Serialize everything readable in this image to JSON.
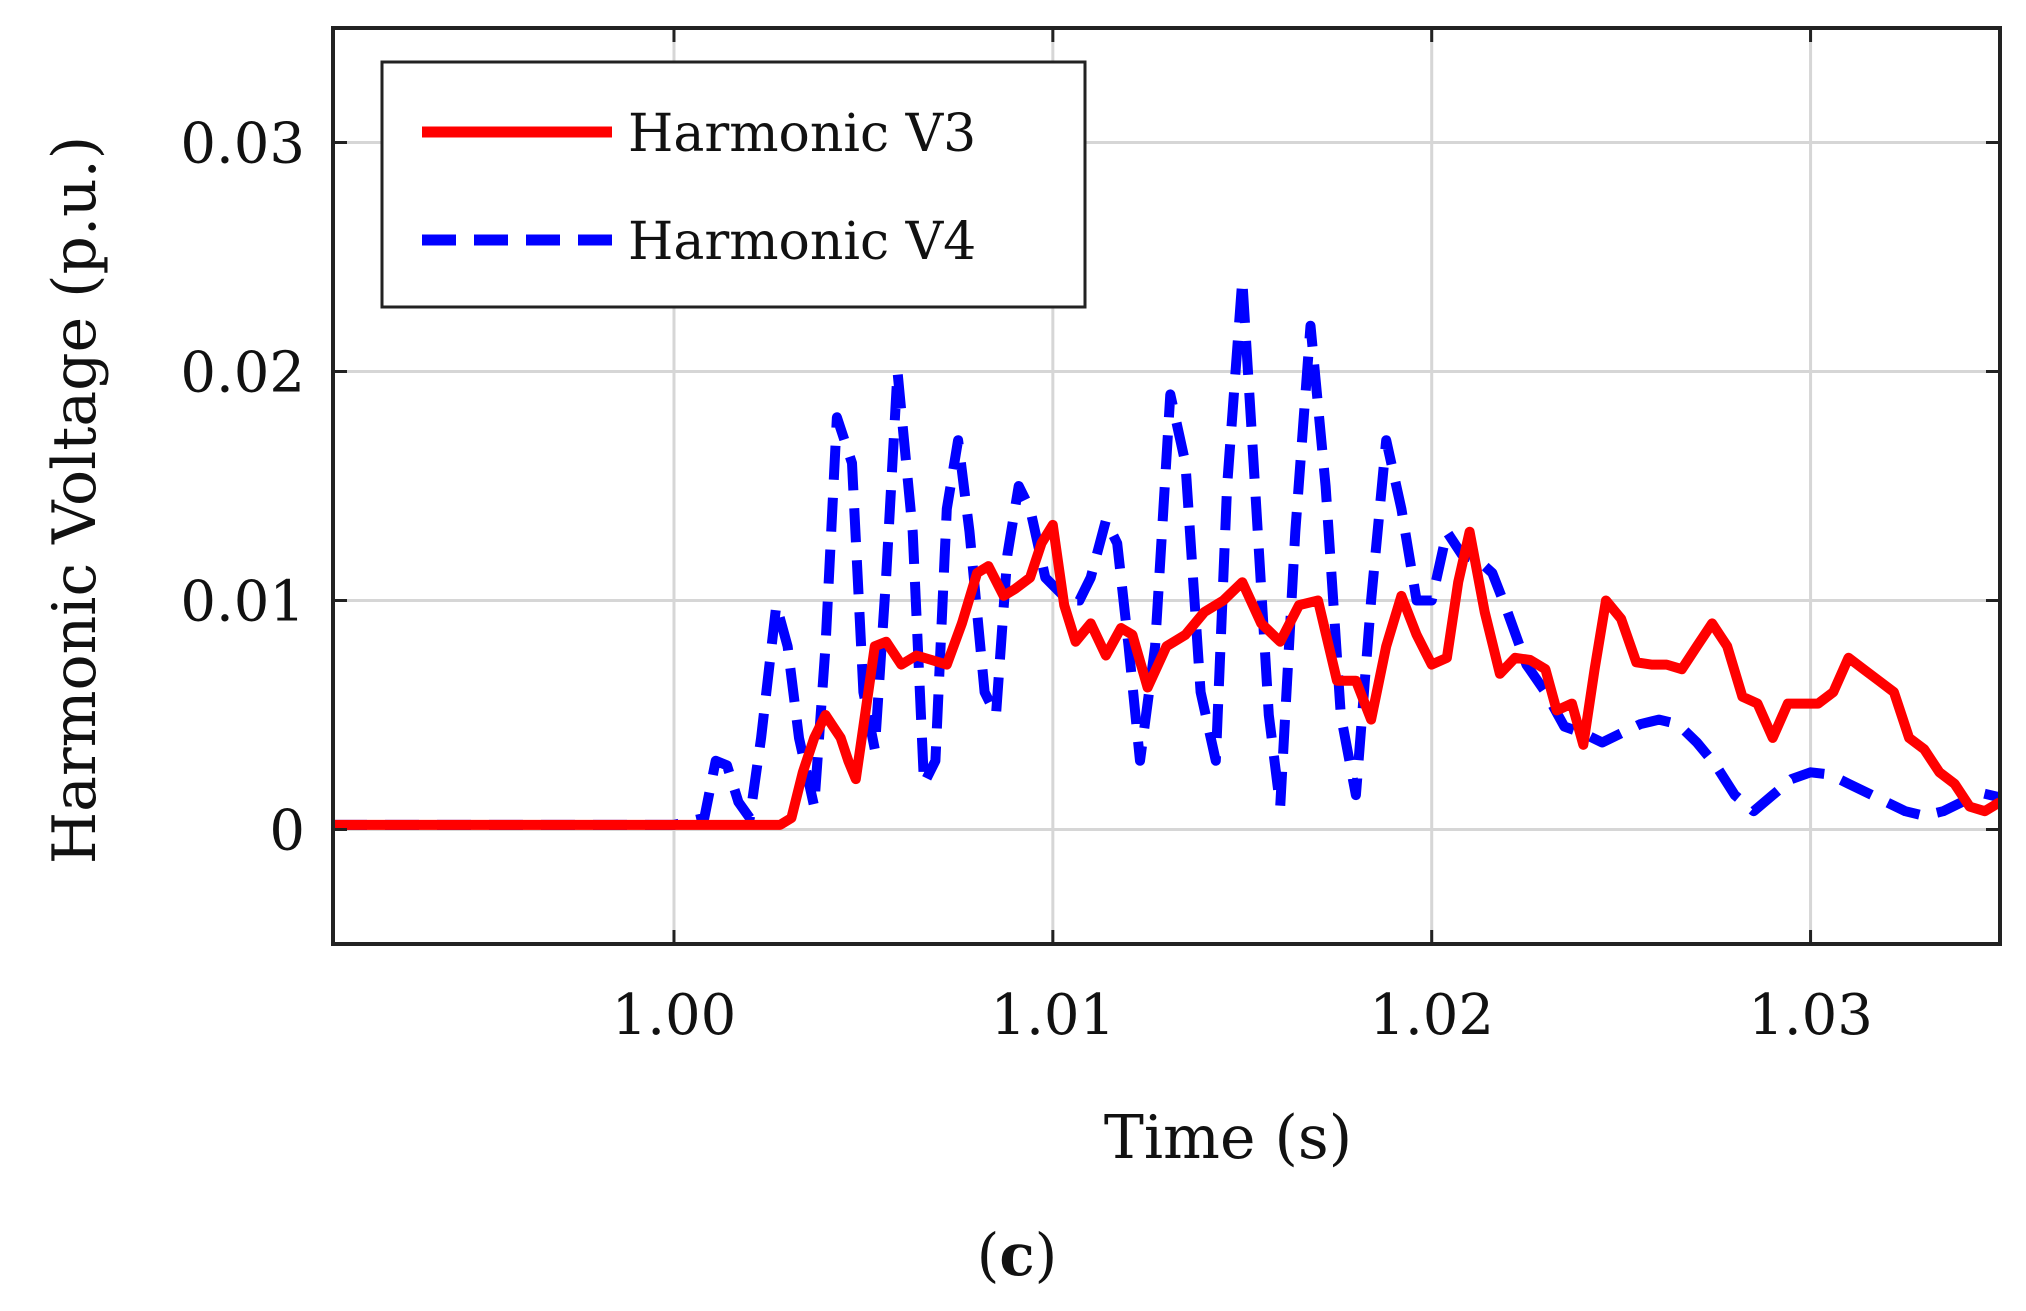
{
  "chart_data": {
    "type": "line",
    "title": "",
    "xlabel": "Time (s)",
    "ylabel": "Harmonic Voltage (p.u.)",
    "xlim": [
      0.991,
      1.035
    ],
    "ylim": [
      -0.005,
      0.035
    ],
    "xticks": [
      1.0,
      1.01,
      1.02,
      1.03
    ],
    "xtick_labels": [
      "1.00",
      "1.01",
      "1.02",
      "1.03"
    ],
    "yticks": [
      0,
      0.01,
      0.02,
      0.03
    ],
    "ytick_labels": [
      "0",
      "0.01",
      "0.02",
      "0.03"
    ],
    "grid": true,
    "legend_position": "top-left",
    "subcaption_open": "(",
    "subcaption_letter": "c",
    "subcaption_close": ")",
    "colors": {
      "v3": "#ff0000",
      "v4": "#0000ff",
      "grid": "#d6d6d6",
      "axis": "#222222"
    },
    "series": [
      {
        "name": "Harmonic V3",
        "style": "solid",
        "color": "#ff0000",
        "x": [
          0.991,
          0.995,
          1.0,
          1.0028,
          1.0031,
          1.0034,
          1.0037,
          1.004,
          1.0042,
          1.0044,
          1.0046,
          1.0048,
          1.005,
          1.0053,
          1.0056,
          1.006,
          1.0064,
          1.0068,
          1.0072,
          1.0076,
          1.008,
          1.0083,
          1.0087,
          1.009,
          1.0094,
          1.0097,
          1.01,
          1.0103,
          1.0106,
          1.011,
          1.0114,
          1.0118,
          1.0121,
          1.0125,
          1.013,
          1.0135,
          1.014,
          1.0145,
          1.015,
          1.0155,
          1.016,
          1.0165,
          1.017,
          1.0175,
          1.018,
          1.0184,
          1.0188,
          1.0192,
          1.0196,
          1.02,
          1.0204,
          1.0207,
          1.021,
          1.0214,
          1.0218,
          1.0222,
          1.0226,
          1.023,
          1.0233,
          1.0237,
          1.024,
          1.0243,
          1.0246,
          1.025,
          1.0254,
          1.0258,
          1.0262,
          1.0266,
          1.027,
          1.0274,
          1.0278,
          1.0282,
          1.0286,
          1.029,
          1.0294,
          1.0298,
          1.0302,
          1.0306,
          1.031,
          1.0314,
          1.0318,
          1.0322,
          1.0326,
          1.033,
          1.0334,
          1.0338,
          1.0342,
          1.0346,
          1.035
        ],
        "y": [
          0.0002,
          0.0002,
          0.0002,
          0.0002,
          0.0005,
          0.0025,
          0.004,
          0.005,
          0.0045,
          0.004,
          0.003,
          0.0022,
          0.0045,
          0.008,
          0.0082,
          0.0072,
          0.0076,
          0.0074,
          0.0072,
          0.009,
          0.0112,
          0.0115,
          0.0102,
          0.0105,
          0.011,
          0.0125,
          0.0133,
          0.0098,
          0.0082,
          0.009,
          0.0076,
          0.0088,
          0.0085,
          0.0062,
          0.008,
          0.0085,
          0.0095,
          0.01,
          0.0108,
          0.009,
          0.0082,
          0.0098,
          0.01,
          0.0065,
          0.0065,
          0.0048,
          0.008,
          0.0102,
          0.0085,
          0.0072,
          0.0075,
          0.0108,
          0.013,
          0.0095,
          0.0068,
          0.0075,
          0.0074,
          0.007,
          0.0052,
          0.0055,
          0.0037,
          0.007,
          0.01,
          0.0092,
          0.0073,
          0.0072,
          0.0072,
          0.007,
          0.008,
          0.009,
          0.008,
          0.0058,
          0.0055,
          0.004,
          0.0055,
          0.0055,
          0.0055,
          0.006,
          0.0075,
          0.007,
          0.0065,
          0.006,
          0.004,
          0.0035,
          0.0025,
          0.002,
          0.001,
          0.0008,
          0.0012
        ]
      },
      {
        "name": "Harmonic V4",
        "style": "dashed",
        "color": "#0000ff",
        "x": [
          0.991,
          0.995,
          1.0,
          1.0008,
          1.0011,
          1.0014,
          1.0017,
          1.002,
          1.0023,
          1.0027,
          1.003,
          1.0033,
          1.0037,
          1.004,
          1.0043,
          1.0047,
          1.005,
          1.0053,
          1.0056,
          1.0059,
          1.0063,
          1.0066,
          1.0069,
          1.0072,
          1.0075,
          1.0078,
          1.0082,
          1.0085,
          1.0088,
          1.0091,
          1.0094,
          1.0098,
          1.0101,
          1.0104,
          1.0107,
          1.011,
          1.0114,
          1.0117,
          1.012,
          1.0123,
          1.0127,
          1.0131,
          1.0135,
          1.0139,
          1.0143,
          1.0146,
          1.015,
          1.0153,
          1.0157,
          1.016,
          1.0164,
          1.0168,
          1.0172,
          1.0176,
          1.018,
          1.0184,
          1.0188,
          1.0192,
          1.0196,
          1.02,
          1.0204,
          1.0208,
          1.0212,
          1.0216,
          1.022,
          1.0225,
          1.023,
          1.0235,
          1.024,
          1.0245,
          1.025,
          1.0255,
          1.026,
          1.0265,
          1.027,
          1.0275,
          1.028,
          1.0285,
          1.029,
          1.0295,
          1.03,
          1.0305,
          1.031,
          1.0315,
          1.032,
          1.0325,
          1.033,
          1.0335,
          1.034,
          1.0345,
          1.035
        ],
        "y": [
          0.0002,
          0.0002,
          0.0002,
          0.0005,
          0.003,
          0.0028,
          0.0012,
          0.0005,
          0.004,
          0.0098,
          0.008,
          0.004,
          0.001,
          0.008,
          0.018,
          0.016,
          0.006,
          0.0035,
          0.011,
          0.02,
          0.013,
          0.002,
          0.003,
          0.014,
          0.017,
          0.013,
          0.006,
          0.005,
          0.012,
          0.015,
          0.014,
          0.011,
          0.0105,
          0.01,
          0.01,
          0.011,
          0.0135,
          0.0125,
          0.008,
          0.003,
          0.008,
          0.019,
          0.016,
          0.006,
          0.003,
          0.015,
          0.024,
          0.016,
          0.005,
          0.001,
          0.013,
          0.022,
          0.015,
          0.005,
          0.0015,
          0.01,
          0.017,
          0.014,
          0.01,
          0.01,
          0.013,
          0.012,
          0.0118,
          0.0112,
          0.0095,
          0.0072,
          0.006,
          0.0045,
          0.0042,
          0.0038,
          0.0042,
          0.0046,
          0.0048,
          0.0046,
          0.0038,
          0.0028,
          0.0015,
          0.0008,
          0.0015,
          0.0022,
          0.0025,
          0.0024,
          0.002,
          0.0016,
          0.0012,
          0.0008,
          0.0006,
          0.0008,
          0.0012,
          0.0016,
          0.0014
        ]
      }
    ]
  }
}
